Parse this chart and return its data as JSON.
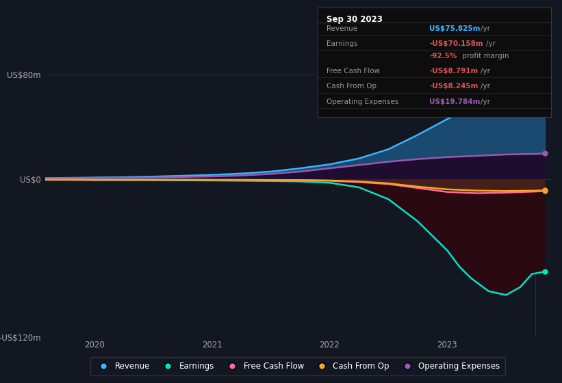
{
  "bg_color": "#131722",
  "grid_color": "#2a2e39",
  "ylim": [
    -120,
    90
  ],
  "xlim": [
    2019.58,
    2023.88
  ],
  "ylabel_ticks": [
    [
      "US$80m",
      80
    ],
    [
      "US$0",
      0
    ],
    [
      "-US$120m",
      -120
    ]
  ],
  "xtick_labels": [
    "2020",
    "2021",
    "2022",
    "2023"
  ],
  "xtick_positions": [
    2020,
    2021,
    2022,
    2023
  ],
  "series": {
    "Revenue": {
      "color": "#38b6ff",
      "fill_color": "#1a4a70",
      "x": [
        2019.58,
        2019.7,
        2019.9,
        2020.0,
        2020.25,
        2020.5,
        2020.75,
        2021.0,
        2021.25,
        2021.5,
        2021.75,
        2022.0,
        2022.25,
        2022.5,
        2022.75,
        2023.0,
        2023.25,
        2023.5,
        2023.75,
        2023.83
      ],
      "y": [
        1.0,
        1.1,
        1.3,
        1.5,
        1.8,
        2.2,
        2.8,
        3.5,
        4.5,
        6.0,
        8.5,
        11.5,
        16.0,
        23.0,
        34.0,
        46.0,
        57.0,
        67.0,
        74.5,
        75.825
      ]
    },
    "Earnings": {
      "color": "#00e5c8",
      "fill_color": "#0a2020",
      "x": [
        2019.58,
        2019.7,
        2019.9,
        2020.0,
        2020.25,
        2020.5,
        2020.75,
        2021.0,
        2021.25,
        2021.5,
        2021.75,
        2022.0,
        2022.25,
        2022.5,
        2022.75,
        2023.0,
        2023.1,
        2023.2,
        2023.35,
        2023.5,
        2023.62,
        2023.72,
        2023.83
      ],
      "y": [
        -0.3,
        -0.3,
        -0.4,
        -0.5,
        -0.5,
        -0.6,
        -0.7,
        -0.8,
        -1.0,
        -1.2,
        -1.5,
        -2.5,
        -6.0,
        -15.0,
        -32.0,
        -54.0,
        -66.0,
        -75.0,
        -85.0,
        -88.0,
        -82.0,
        -72.0,
        -70.158
      ]
    },
    "FreeCashFlow": {
      "color": "#ff6b9d",
      "fill_color": "#2a0a18",
      "x": [
        2019.58,
        2019.7,
        2019.9,
        2020.0,
        2020.25,
        2020.5,
        2020.75,
        2021.0,
        2021.25,
        2021.5,
        2021.75,
        2022.0,
        2022.25,
        2022.5,
        2022.75,
        2023.0,
        2023.25,
        2023.5,
        2023.75,
        2023.83
      ],
      "y": [
        -0.2,
        -0.2,
        -0.2,
        -0.3,
        -0.3,
        -0.3,
        -0.3,
        -0.4,
        -0.4,
        -0.5,
        -0.6,
        -1.0,
        -2.0,
        -3.5,
        -6.5,
        -9.5,
        -10.5,
        -10.0,
        -9.2,
        -8.791
      ]
    },
    "CashFromOp": {
      "color": "#f5a623",
      "fill_color": "#3a2000",
      "x": [
        2019.58,
        2019.7,
        2019.9,
        2020.0,
        2020.25,
        2020.5,
        2020.75,
        2021.0,
        2021.25,
        2021.5,
        2021.75,
        2022.0,
        2022.25,
        2022.5,
        2022.75,
        2023.0,
        2023.25,
        2023.5,
        2023.75,
        2023.83
      ],
      "y": [
        -0.1,
        -0.1,
        -0.2,
        -0.2,
        -0.2,
        -0.2,
        -0.2,
        -0.3,
        -0.3,
        -0.4,
        -0.5,
        -0.8,
        -1.5,
        -3.0,
        -5.5,
        -7.5,
        -8.5,
        -8.8,
        -8.5,
        -8.245
      ]
    },
    "OperatingExpenses": {
      "color": "#9b59b6",
      "fill_color": "#1e0d2e",
      "x": [
        2019.58,
        2019.7,
        2019.9,
        2020.0,
        2020.25,
        2020.5,
        2020.75,
        2021.0,
        2021.25,
        2021.5,
        2021.75,
        2022.0,
        2022.25,
        2022.5,
        2022.75,
        2023.0,
        2023.25,
        2023.5,
        2023.75,
        2023.83
      ],
      "y": [
        0.8,
        0.9,
        1.0,
        1.1,
        1.3,
        1.5,
        1.9,
        2.3,
        3.0,
        4.2,
        6.0,
        8.5,
        11.0,
        13.5,
        15.5,
        17.0,
        18.0,
        19.0,
        19.5,
        19.784
      ]
    }
  },
  "tooltip": {
    "date": "Sep 30 2023",
    "rows": [
      {
        "label": "Revenue",
        "value": "US$75.825m",
        "unit": "/yr",
        "value_color": "#38b6ff"
      },
      {
        "label": "Earnings",
        "value": "-US$70.158m",
        "unit": "/yr",
        "value_color": "#e05252"
      },
      {
        "label": "",
        "value": "-92.5%",
        "unit": " profit margin",
        "value_color": "#e05252"
      },
      {
        "label": "Free Cash Flow",
        "value": "-US$8.791m",
        "unit": "/yr",
        "value_color": "#e05252"
      },
      {
        "label": "Cash From Op",
        "value": "-US$8.245m",
        "unit": "/yr",
        "value_color": "#e05252"
      },
      {
        "label": "Operating Expenses",
        "value": "US$19.784m",
        "unit": "/yr",
        "value_color": "#9b59b6"
      }
    ]
  },
  "legend": [
    {
      "label": "Revenue",
      "color": "#38b6ff"
    },
    {
      "label": "Earnings",
      "color": "#00e5c8"
    },
    {
      "label": "Free Cash Flow",
      "color": "#ff6b9d"
    },
    {
      "label": "Cash From Op",
      "color": "#f5a623"
    },
    {
      "label": "Operating Expenses",
      "color": "#9b59b6"
    }
  ],
  "vertical_line_x": 2023.75
}
